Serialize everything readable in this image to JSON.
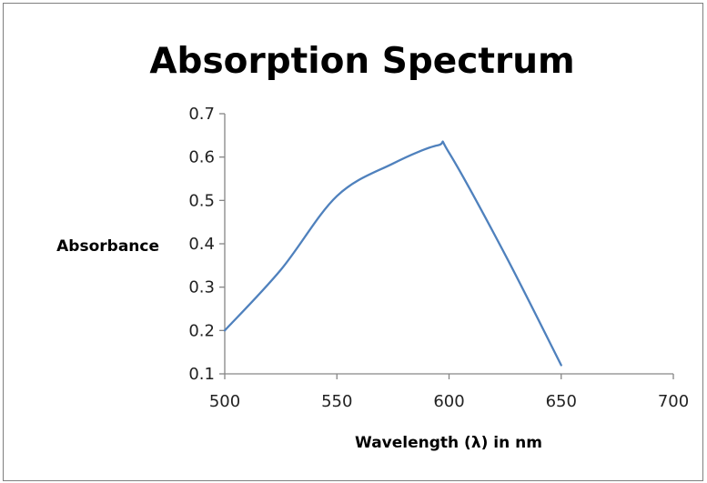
{
  "chart_data": {
    "type": "line",
    "title": "Absorption Spectrum",
    "xlabel": "Wavelength (λ) in nm",
    "ylabel": "Absorbance",
    "xlim": [
      500,
      700
    ],
    "ylim": [
      0.1,
      0.7
    ],
    "x_ticks": [
      "500",
      "550",
      "600",
      "650",
      "700"
    ],
    "y_ticks": [
      "0.1",
      "0.2",
      "0.3",
      "0.4",
      "0.5",
      "0.6",
      "0.7"
    ],
    "grid": false,
    "legend": "none",
    "series": [
      {
        "color": "#4f81bd",
        "x": [
          500,
          525,
          550,
          575,
          595,
          600,
          625,
          650
        ],
        "y": [
          0.2,
          0.34,
          0.51,
          0.585,
          0.627,
          0.61,
          0.375,
          0.12
        ]
      }
    ]
  }
}
